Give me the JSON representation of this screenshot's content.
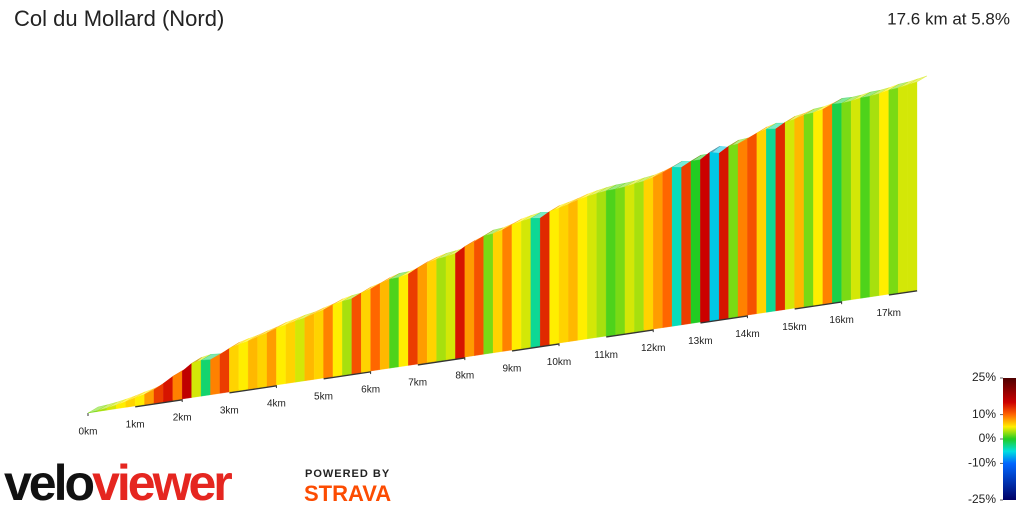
{
  "chart_data": {
    "type": "profile",
    "title": "Col du Mollard (Nord)",
    "subtitle": "17.6 km at 5.8%",
    "xlim": [
      0,
      17.6
    ],
    "xticks": [
      {
        "value": 0,
        "label": "0km"
      },
      {
        "value": 1,
        "label": "1km"
      },
      {
        "value": 2,
        "label": "2km"
      },
      {
        "value": 3,
        "label": "3km"
      },
      {
        "value": 4,
        "label": "4km"
      },
      {
        "value": 5,
        "label": "5km"
      },
      {
        "value": 6,
        "label": "6km"
      },
      {
        "value": 7,
        "label": "7km"
      },
      {
        "value": 8,
        "label": "8km"
      },
      {
        "value": 9,
        "label": "9km"
      },
      {
        "value": 10,
        "label": "10km"
      },
      {
        "value": 11,
        "label": "11km"
      },
      {
        "value": 12,
        "label": "12km"
      },
      {
        "value": 13,
        "label": "13km"
      },
      {
        "value": 14,
        "label": "14km"
      },
      {
        "value": 15,
        "label": "15km"
      },
      {
        "value": 16,
        "label": "16km"
      },
      {
        "value": 17,
        "label": "17km"
      }
    ],
    "values": [
      2,
      3,
      4,
      5,
      6,
      5,
      8,
      12,
      14,
      9,
      16,
      4,
      -2,
      9,
      12,
      6,
      5,
      7,
      6,
      8,
      5,
      6,
      4,
      7,
      6,
      9,
      5,
      3,
      11,
      6,
      10,
      7,
      1,
      5,
      12,
      8,
      6,
      3,
      4,
      14,
      8,
      11,
      2,
      6,
      9,
      5,
      4,
      -3,
      13,
      5,
      6,
      7,
      5,
      4,
      3,
      1,
      2,
      4,
      3,
      6,
      8,
      10,
      -4,
      12,
      0,
      15,
      -6,
      14,
      2,
      9,
      11,
      6,
      -3,
      13,
      4,
      7,
      2,
      5,
      9,
      -1,
      2,
      4,
      1,
      3,
      5,
      2,
      4,
      4
    ],
    "colorbar": {
      "ylim": [
        -25,
        25
      ],
      "ticks": [
        {
          "value": 25,
          "label": "25%"
        },
        {
          "value": 10,
          "label": "10%"
        },
        {
          "value": 0,
          "label": "0%"
        },
        {
          "value": -10,
          "label": "-10%"
        },
        {
          "value": -25,
          "label": "-25%"
        }
      ],
      "stops": [
        {
          "value": 25,
          "color": "#4d0000"
        },
        {
          "value": 15,
          "color": "#cc0000"
        },
        {
          "value": 10,
          "color": "#ff6600"
        },
        {
          "value": 5,
          "color": "#ffee00"
        },
        {
          "value": 0,
          "color": "#22cc22"
        },
        {
          "value": -5,
          "color": "#00e0e0"
        },
        {
          "value": -10,
          "color": "#0066ff"
        },
        {
          "value": -25,
          "color": "#000066"
        }
      ]
    }
  },
  "branding": {
    "logo_velo": "velo",
    "logo_viewer": "viewer",
    "powered_by": "POWERED BY",
    "strava": "STRAVA"
  }
}
